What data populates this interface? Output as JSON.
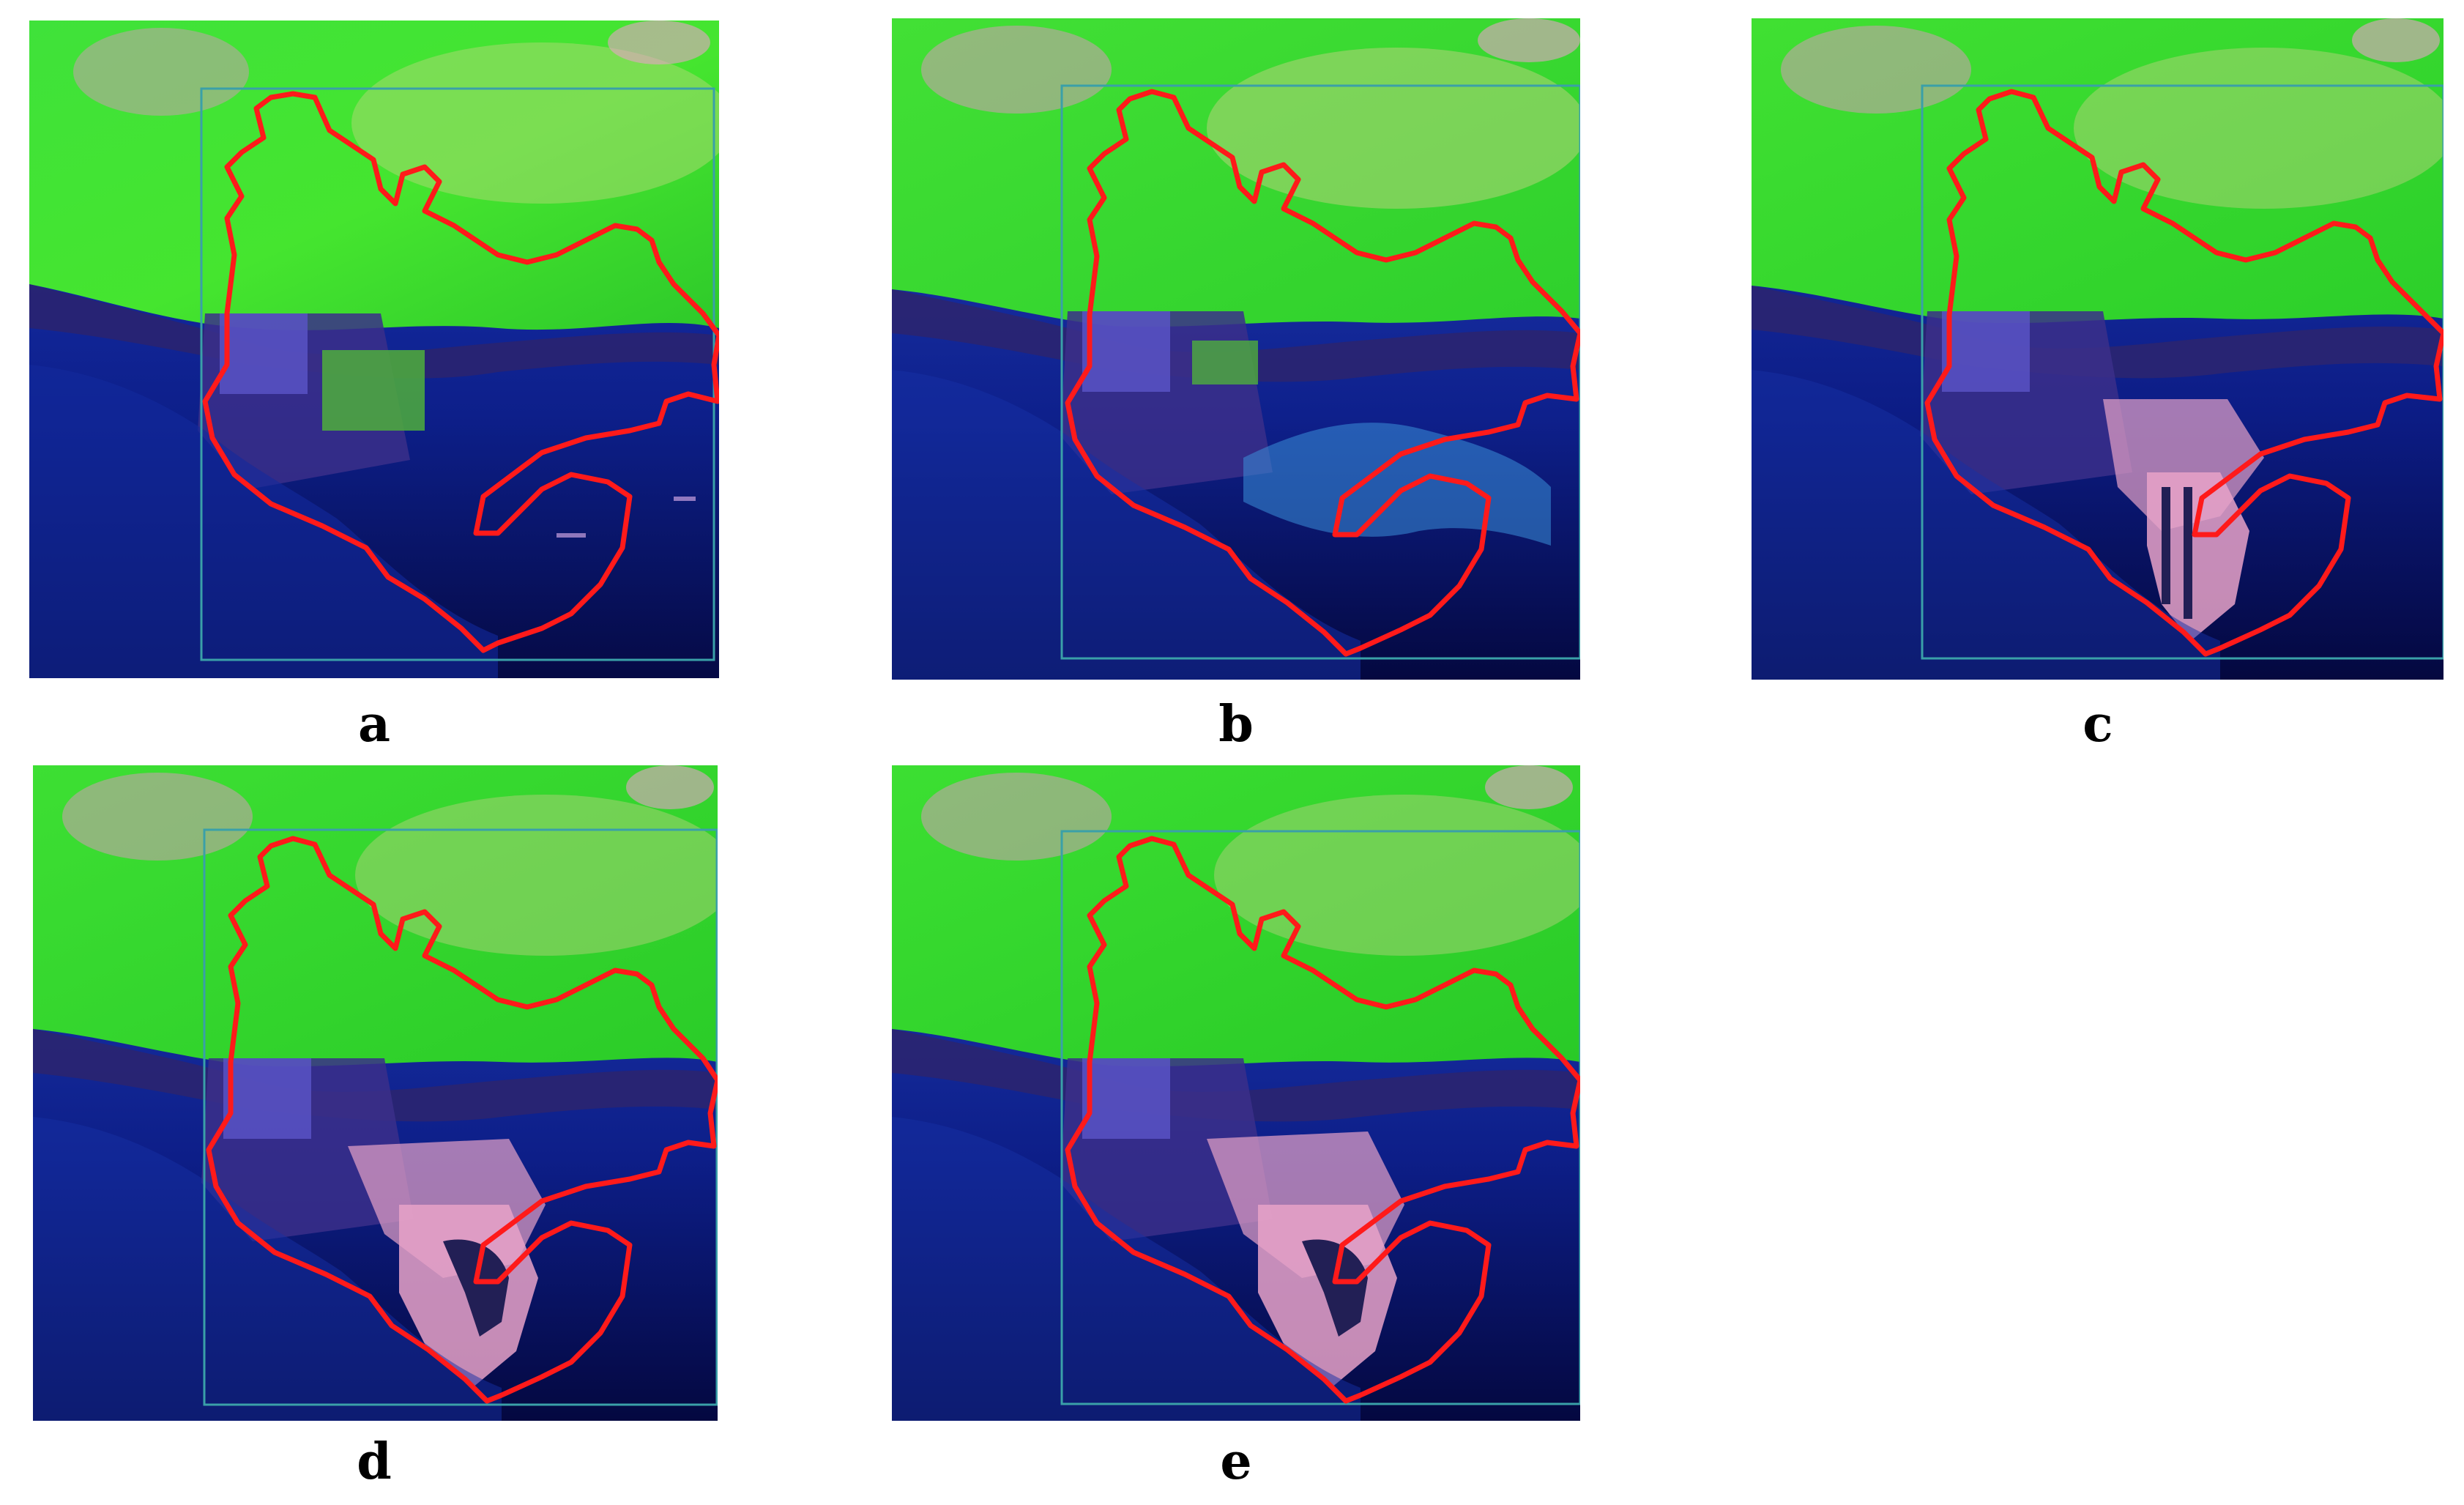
{
  "panels": [
    {
      "id": "a",
      "label": "a"
    },
    {
      "id": "b",
      "label": "b"
    },
    {
      "id": "c",
      "label": "c"
    },
    {
      "id": "d",
      "label": "d"
    },
    {
      "id": "e",
      "label": "e"
    }
  ],
  "colors": {
    "vegetation": "#39e22a",
    "vegetation_light": "#86e84a",
    "urban_pink": "#e7a2c8",
    "sea_deep": "#0a1470",
    "sea_mid": "#1d38b4",
    "coast_dark": "#221f55",
    "boundary_red": "#ff1a1a",
    "frame_teal": "#3aa0a8"
  }
}
